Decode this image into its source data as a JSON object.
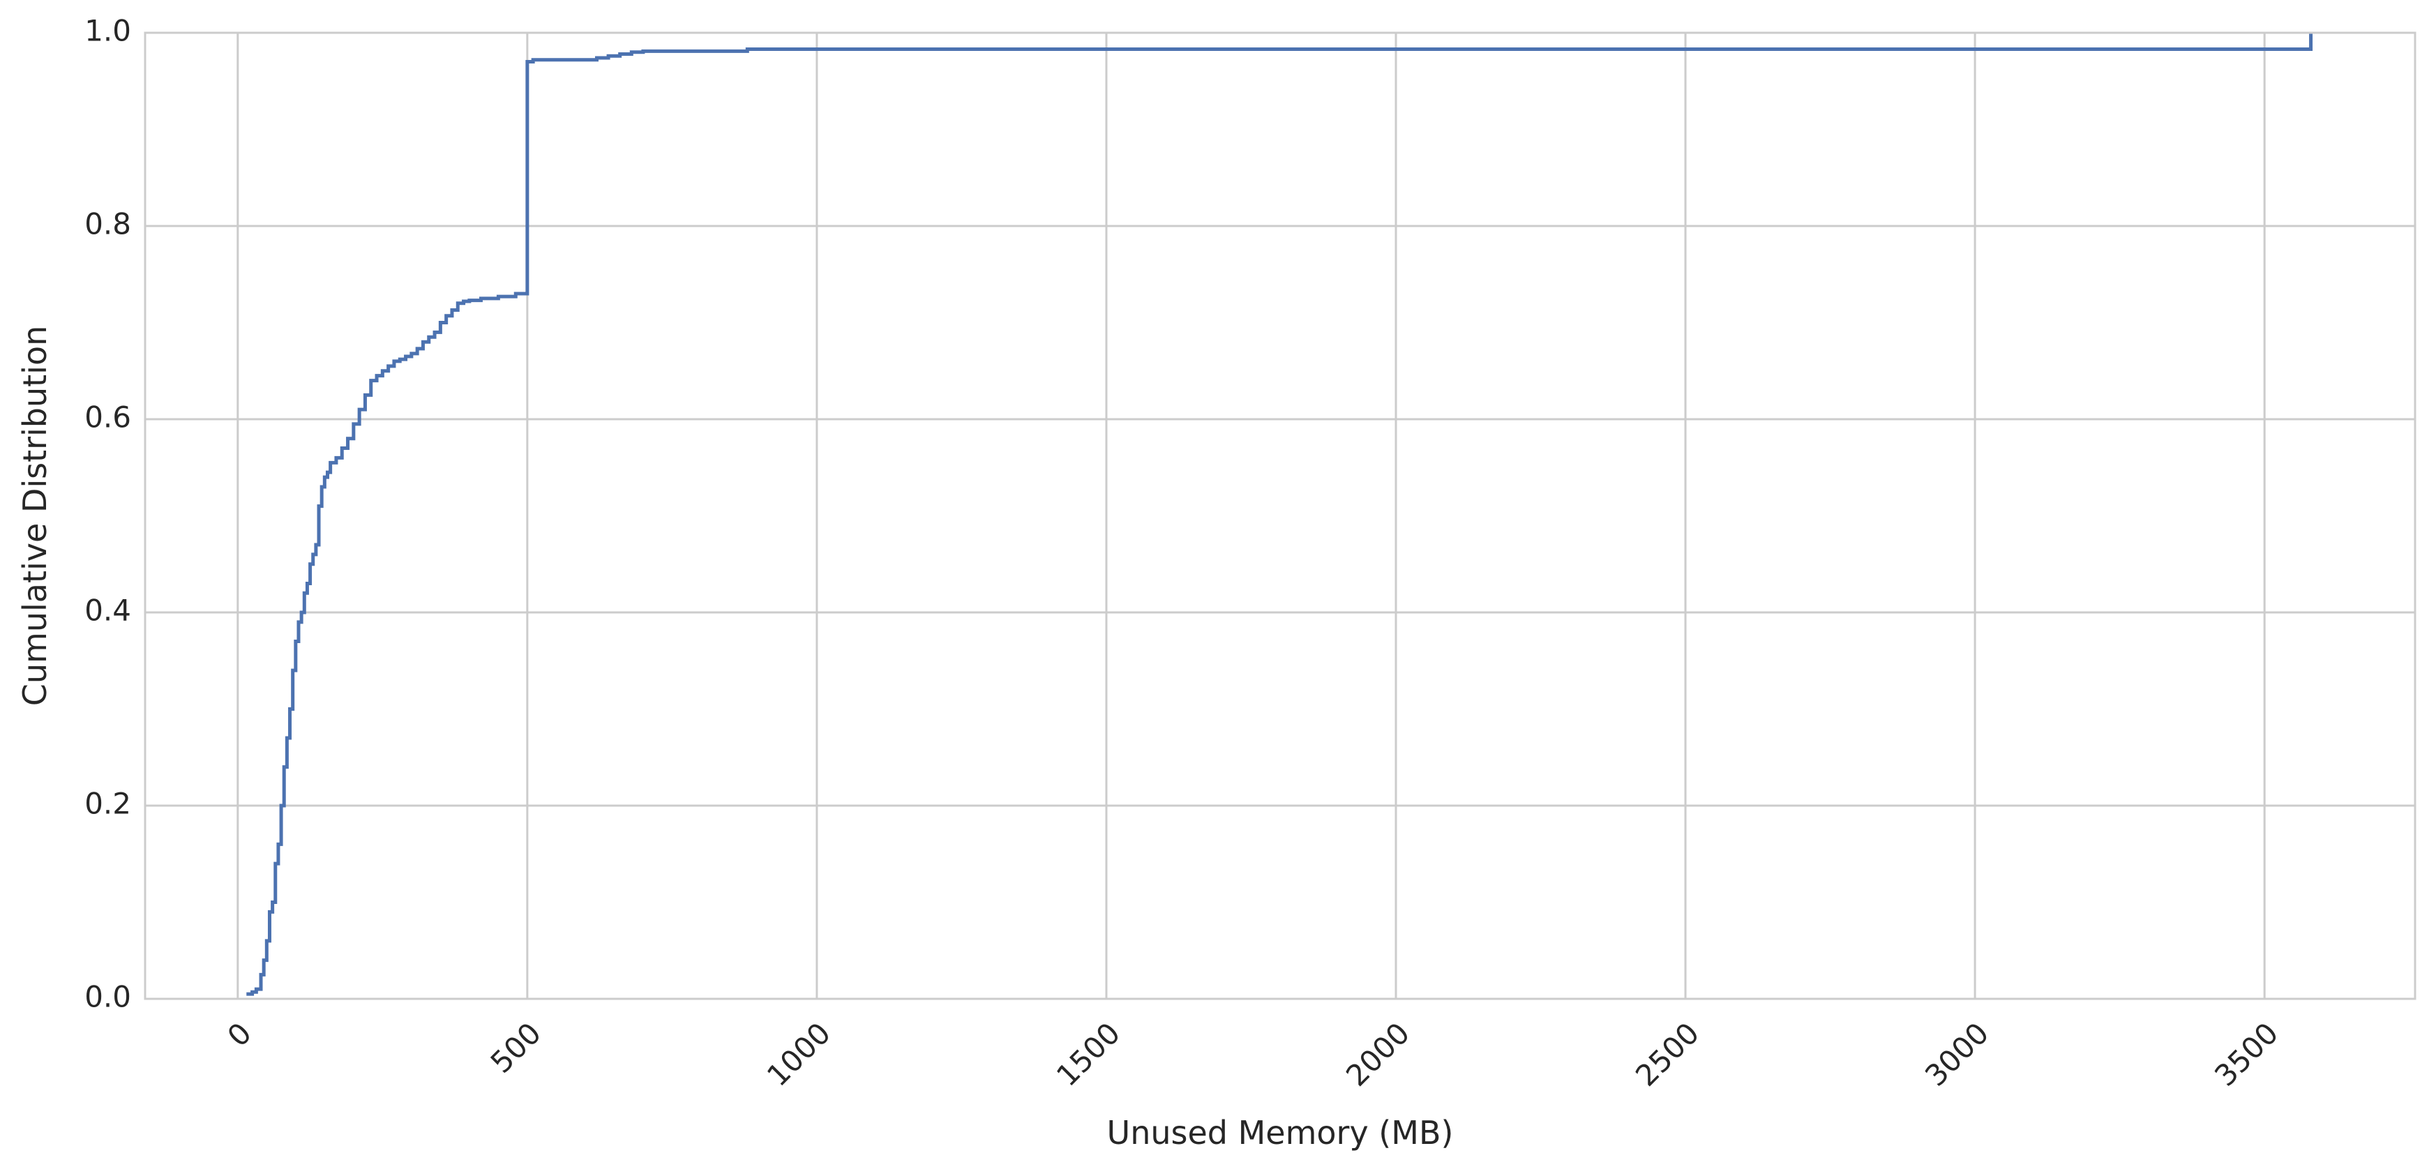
{
  "chart_data": {
    "type": "line",
    "subtype": "step-cdf",
    "title": "",
    "xlabel": "Unused Memory (MB)",
    "ylabel": "Cumulative Distribution",
    "xlim": [
      -160,
      3760
    ],
    "ylim": [
      0,
      1.0
    ],
    "xticks": [
      0,
      500,
      1000,
      1500,
      2000,
      2500,
      3000,
      3500
    ],
    "xtick_labels": [
      "0",
      "500",
      "1000",
      "1500",
      "2000",
      "2500",
      "3000",
      "3500"
    ],
    "xtick_rotation": 45,
    "yticks": [
      0.0,
      0.2,
      0.4,
      0.6,
      0.8,
      1.0
    ],
    "ytick_labels": [
      "0.0",
      "0.2",
      "0.4",
      "0.6",
      "0.8",
      "1.0"
    ],
    "grid": true,
    "line_color": "#4c72b0",
    "grid_color": "#cccccc",
    "series": [
      {
        "x": [
          15,
          25,
          32,
          40,
          45,
          50,
          55,
          60,
          65,
          70,
          75,
          80,
          85,
          90,
          95,
          100,
          105,
          110,
          115,
          120,
          125,
          130,
          135,
          140,
          145,
          150,
          155,
          160,
          170,
          180,
          190,
          200,
          210,
          220,
          230,
          240,
          250,
          260,
          270,
          280,
          290,
          300,
          310,
          320,
          330,
          340,
          350,
          360,
          370,
          380,
          390,
          400,
          410,
          420,
          430,
          450,
          480,
          500,
          510,
          515,
          520,
          620,
          640,
          660,
          680,
          700,
          880,
          3580,
          3580
        ],
        "values": [
          0.005,
          0.007,
          0.01,
          0.025,
          0.04,
          0.06,
          0.09,
          0.1,
          0.14,
          0.16,
          0.2,
          0.24,
          0.27,
          0.3,
          0.34,
          0.37,
          0.39,
          0.4,
          0.42,
          0.43,
          0.45,
          0.46,
          0.47,
          0.51,
          0.53,
          0.54,
          0.545,
          0.555,
          0.56,
          0.57,
          0.58,
          0.595,
          0.61,
          0.625,
          0.64,
          0.645,
          0.65,
          0.655,
          0.66,
          0.662,
          0.665,
          0.668,
          0.673,
          0.68,
          0.685,
          0.69,
          0.7,
          0.707,
          0.713,
          0.72,
          0.722,
          0.723,
          0.723,
          0.725,
          0.725,
          0.727,
          0.73,
          0.97,
          0.972,
          0.972,
          0.972,
          0.974,
          0.976,
          0.978,
          0.98,
          0.981,
          0.983,
          0.983,
          1.0
        ]
      }
    ]
  }
}
